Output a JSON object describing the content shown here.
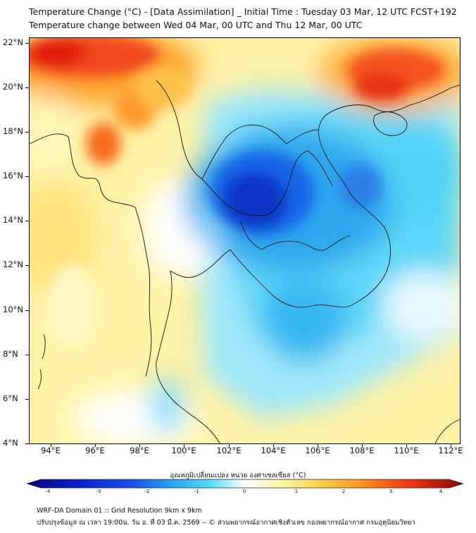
{
  "title": {
    "line1": "Temperature Change (°C) - [Data Assimilation] _ Initial Time : Tuesday 03 Mar, 12 UTC FCST+192",
    "line2": "Temperature change between Wed 04 Mar, 00 UTC and Thu 12 Mar, 00 UTC"
  },
  "map": {
    "lat_labels": [
      "22°N",
      "20°N",
      "18°N",
      "16°N",
      "14°N",
      "12°N",
      "10°N",
      "8°N",
      "6°N",
      "4°N"
    ],
    "lon_labels": [
      "94°E",
      "96°E",
      "98°E",
      "100°E",
      "102°E",
      "104°E",
      "106°E",
      "108°E",
      "110°E",
      "112°E"
    ],
    "lat_range": [
      4,
      22.2
    ],
    "lon_range": [
      93,
      112.5
    ]
  },
  "colorbar": {
    "label": "อุณหภูมิเปลี่ยนแปลง หน่วย องศาเซลเซียส (°C)",
    "ticks": [
      "-4",
      "-3",
      "-2",
      "-1",
      "0",
      "1",
      "2",
      "3",
      "4"
    ],
    "range": [
      -4,
      4
    ],
    "colors": [
      "#05057a",
      "#0a1fcf",
      "#1a55f0",
      "#21a6ee",
      "#4fdcfa",
      "#ffffff",
      "#fff7a8",
      "#ffd34a",
      "#ff9a1c",
      "#f2330d",
      "#8a0606"
    ]
  },
  "footer": {
    "line1": "WRF-DA Domain 01 :: Grid Resolution 9km x 9km",
    "line2": "ปรับปรุงข้อมูล ณ เวลา 19:00น. วัน อ. ที่ 03 มี.ค. 2569 -- © ส่วนพยากรณ์อากาศเชิงตัวเลข กองพยากรณ์อากาศ กรมอุตุนิยมวิทยา"
  }
}
